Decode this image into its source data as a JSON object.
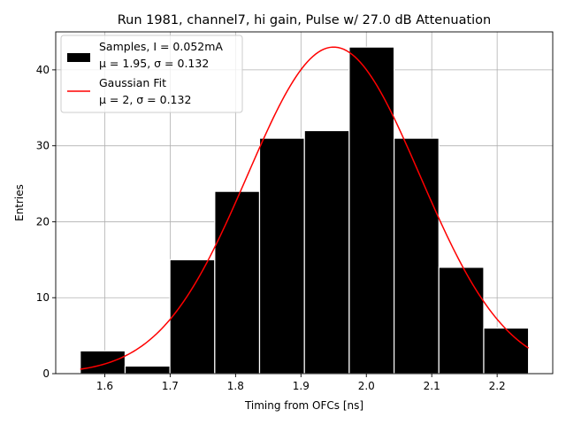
{
  "chart_data": {
    "type": "bar",
    "title": "Run 1981, channel7, hi gain, Pulse w/ 27.0 dB Attenuation",
    "xlabel": "Timing from OFCs [ns]",
    "ylabel": "Entries",
    "xlim": [
      1.525,
      2.285
    ],
    "ylim": [
      0,
      45
    ],
    "xticks": [
      1.6,
      1.7,
      1.8,
      1.9,
      2.0,
      2.1,
      2.2
    ],
    "xtick_labels": [
      "1.6",
      "1.7",
      "1.8",
      "1.9",
      "2.0",
      "2.1",
      "2.2"
    ],
    "yticks": [
      0,
      10,
      20,
      30,
      40
    ],
    "ytick_labels": [
      "0",
      "10",
      "20",
      "30",
      "40"
    ],
    "grid": true,
    "bins": [
      {
        "x0": 1.5625,
        "x1": 1.6311,
        "count": 3
      },
      {
        "x0": 1.6311,
        "x1": 1.6996,
        "count": 1
      },
      {
        "x0": 1.6996,
        "x1": 1.7682,
        "count": 15
      },
      {
        "x0": 1.7682,
        "x1": 1.8367,
        "count": 24
      },
      {
        "x0": 1.8367,
        "x1": 1.9053,
        "count": 31
      },
      {
        "x0": 1.9053,
        "x1": 1.9738,
        "count": 32
      },
      {
        "x0": 1.9738,
        "x1": 2.0424,
        "count": 43
      },
      {
        "x0": 2.0424,
        "x1": 2.1109,
        "count": 31
      },
      {
        "x0": 2.1109,
        "x1": 2.1795,
        "count": 14
      },
      {
        "x0": 2.1795,
        "x1": 2.248,
        "count": 6
      }
    ],
    "gaussian_fit": {
      "mu": 1.95,
      "sigma": 0.132,
      "amplitude": 43,
      "x_range": [
        1.5625,
        2.248
      ],
      "color": "#ff0000"
    },
    "bar_color": "#000000",
    "bar_edge_color": "#ffffff",
    "legend": {
      "placement": "upper-left",
      "entries": [
        {
          "kind": "patch",
          "line1": "Samples, I = 0.052mA",
          "line2": "μ = 1.95, σ = 0.132",
          "color": "#000000"
        },
        {
          "kind": "line",
          "line1": "Gaussian Fit",
          "line2": "μ = 2, σ = 0.132",
          "color": "#ff0000"
        }
      ]
    }
  }
}
